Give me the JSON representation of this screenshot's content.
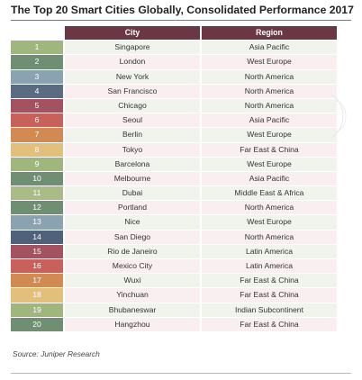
{
  "title": "The Top 20 Smart Cities Globally, Consolidated Performance 2017",
  "table": {
    "headers": {
      "city": "City",
      "region": "Region"
    },
    "rows": [
      {
        "rank": "1",
        "city": "Singapore",
        "region": "Asia Pacific",
        "color": "#9fb67d"
      },
      {
        "rank": "2",
        "city": "London",
        "region": "West Europe",
        "color": "#6f8f73"
      },
      {
        "rank": "3",
        "city": "New York",
        "region": "North America",
        "color": "#8ba2b1"
      },
      {
        "rank": "4",
        "city": "San Francisco",
        "region": "North America",
        "color": "#5b6b82"
      },
      {
        "rank": "5",
        "city": "Chicago",
        "region": "North America",
        "color": "#a3525f"
      },
      {
        "rank": "6",
        "city": "Seoul",
        "region": "Asia Pacific",
        "color": "#c8605c"
      },
      {
        "rank": "7",
        "city": "Berlin",
        "region": "West Europe",
        "color": "#d08a52"
      },
      {
        "rank": "8",
        "city": "Tokyo",
        "region": "Far East & China",
        "color": "#e2c07c"
      },
      {
        "rank": "9",
        "city": "Barcelona",
        "region": "West Europe",
        "color": "#9fb67d"
      },
      {
        "rank": "10",
        "city": "Melbourne",
        "region": "Asia Pacific",
        "color": "#6f8f73"
      },
      {
        "rank": "11",
        "city": "Dubai",
        "region": "Middle East & Africa",
        "color": "#a9bb86"
      },
      {
        "rank": "12",
        "city": "Portland",
        "region": "North America",
        "color": "#6f8f73"
      },
      {
        "rank": "13",
        "city": "Nice",
        "region": "West Europe",
        "color": "#8ba2b1"
      },
      {
        "rank": "14",
        "city": "San Diego",
        "region": "North America",
        "color": "#4f627a"
      },
      {
        "rank": "15",
        "city": "Rio de Janeiro",
        "region": "Latin America",
        "color": "#a3525f"
      },
      {
        "rank": "16",
        "city": "Mexico City",
        "region": "Latin America",
        "color": "#c8605c"
      },
      {
        "rank": "17",
        "city": "Wuxi",
        "region": "Far East & China",
        "color": "#d08a52"
      },
      {
        "rank": "18",
        "city": "Yinchuan",
        "region": "Far East & China",
        "color": "#e2c07c"
      },
      {
        "rank": "19",
        "city": "Bhubaneswar",
        "region": "Indian Subcontinent",
        "color": "#9fb67d"
      },
      {
        "rank": "20",
        "city": "Hangzhou",
        "region": "Far East & China",
        "color": "#6f8f73"
      }
    ]
  },
  "source": "Source: Juniper Research",
  "colors": {
    "header": "#6b3742",
    "row_even": "#f1f4ed",
    "row_odd": "#f9eff0"
  }
}
